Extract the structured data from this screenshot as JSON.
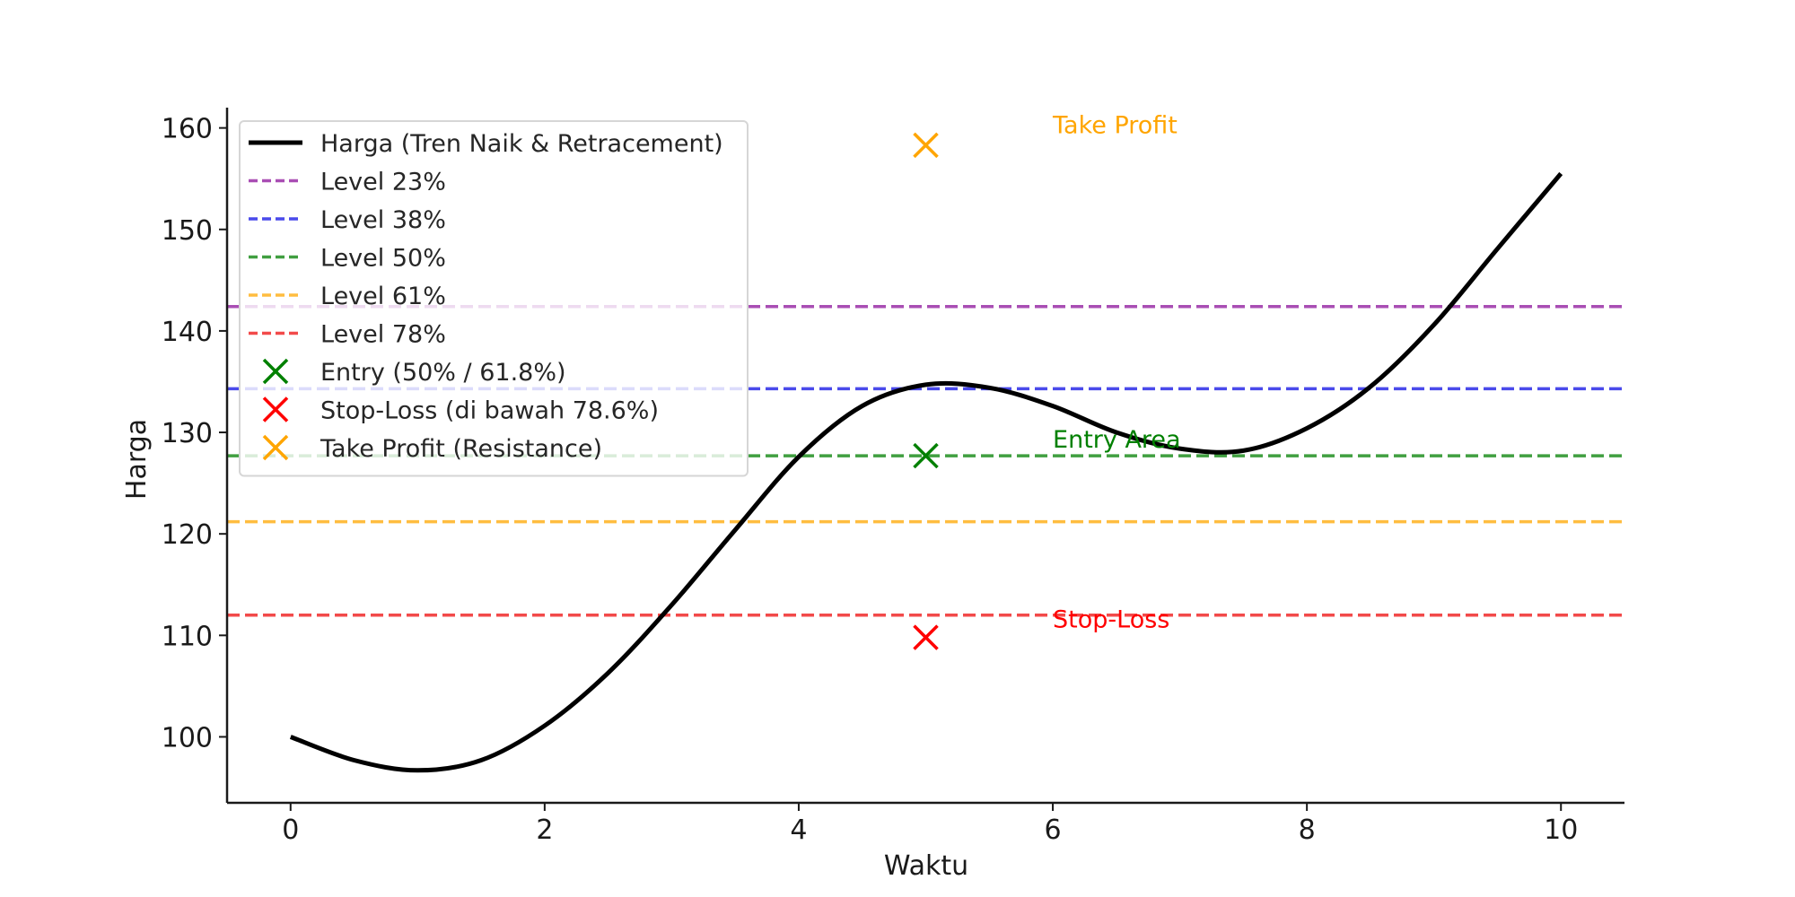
{
  "chart_data": {
    "type": "line",
    "title": "",
    "xlabel": "Waktu",
    "ylabel": "Harga",
    "xlim": [
      -0.5,
      10.5
    ],
    "ylim": [
      93.5,
      162
    ],
    "xticks": [
      0,
      2,
      4,
      6,
      8,
      10
    ],
    "yticks": [
      100,
      110,
      120,
      130,
      140,
      150,
      160
    ],
    "grid": false,
    "legend_position": "top-left",
    "series": [
      {
        "name": "Harga (Tren Naik & Retracement)",
        "color": "#000000",
        "x": [
          0,
          0.5,
          1,
          1.5,
          2,
          2.5,
          3,
          3.5,
          4,
          4.5,
          5,
          5.5,
          6,
          6.5,
          7,
          7.5,
          8,
          8.5,
          9,
          9.5,
          10
        ],
        "y": [
          100,
          97.7,
          96.7,
          97.7,
          101.1,
          106.3,
          113.0,
          120.4,
          127.6,
          132.6,
          134.7,
          134.4,
          132.6,
          130.0,
          128.4,
          128.2,
          130.4,
          134.5,
          140.6,
          148.1,
          155.5
        ]
      }
    ],
    "levels": [
      {
        "name": "Level 23%",
        "value": 142.4,
        "color": "#9b30a8"
      },
      {
        "name": "Level 38%",
        "value": 134.3,
        "color": "#2b2be8"
      },
      {
        "name": "Level 50%",
        "value": 127.7,
        "color": "#1f8f1f"
      },
      {
        "name": "Level 61%",
        "value": 121.2,
        "color": "#ffb21f"
      },
      {
        "name": "Level 78%",
        "value": 112.0,
        "color": "#f02b2b"
      }
    ],
    "markers": [
      {
        "name": "Entry (50% / 61.8%)",
        "x": 5,
        "y": 127.7,
        "color": "#008000"
      },
      {
        "name": "Stop-Loss (di bawah 78.6%)",
        "x": 5,
        "y": 109.8,
        "color": "#ff0000"
      },
      {
        "name": "Take Profit (Resistance)",
        "x": 5,
        "y": 158.3,
        "color": "#ffa500"
      }
    ],
    "annotations": [
      {
        "text": "Take Profit",
        "x": 6,
        "y": 159.5,
        "color": "#ffa500"
      },
      {
        "text": "Entry Area",
        "x": 6,
        "y": 128.5,
        "color": "#008000"
      },
      {
        "text": "Stop-Loss",
        "x": 6,
        "y": 110.8,
        "color": "#ff0000"
      }
    ]
  }
}
